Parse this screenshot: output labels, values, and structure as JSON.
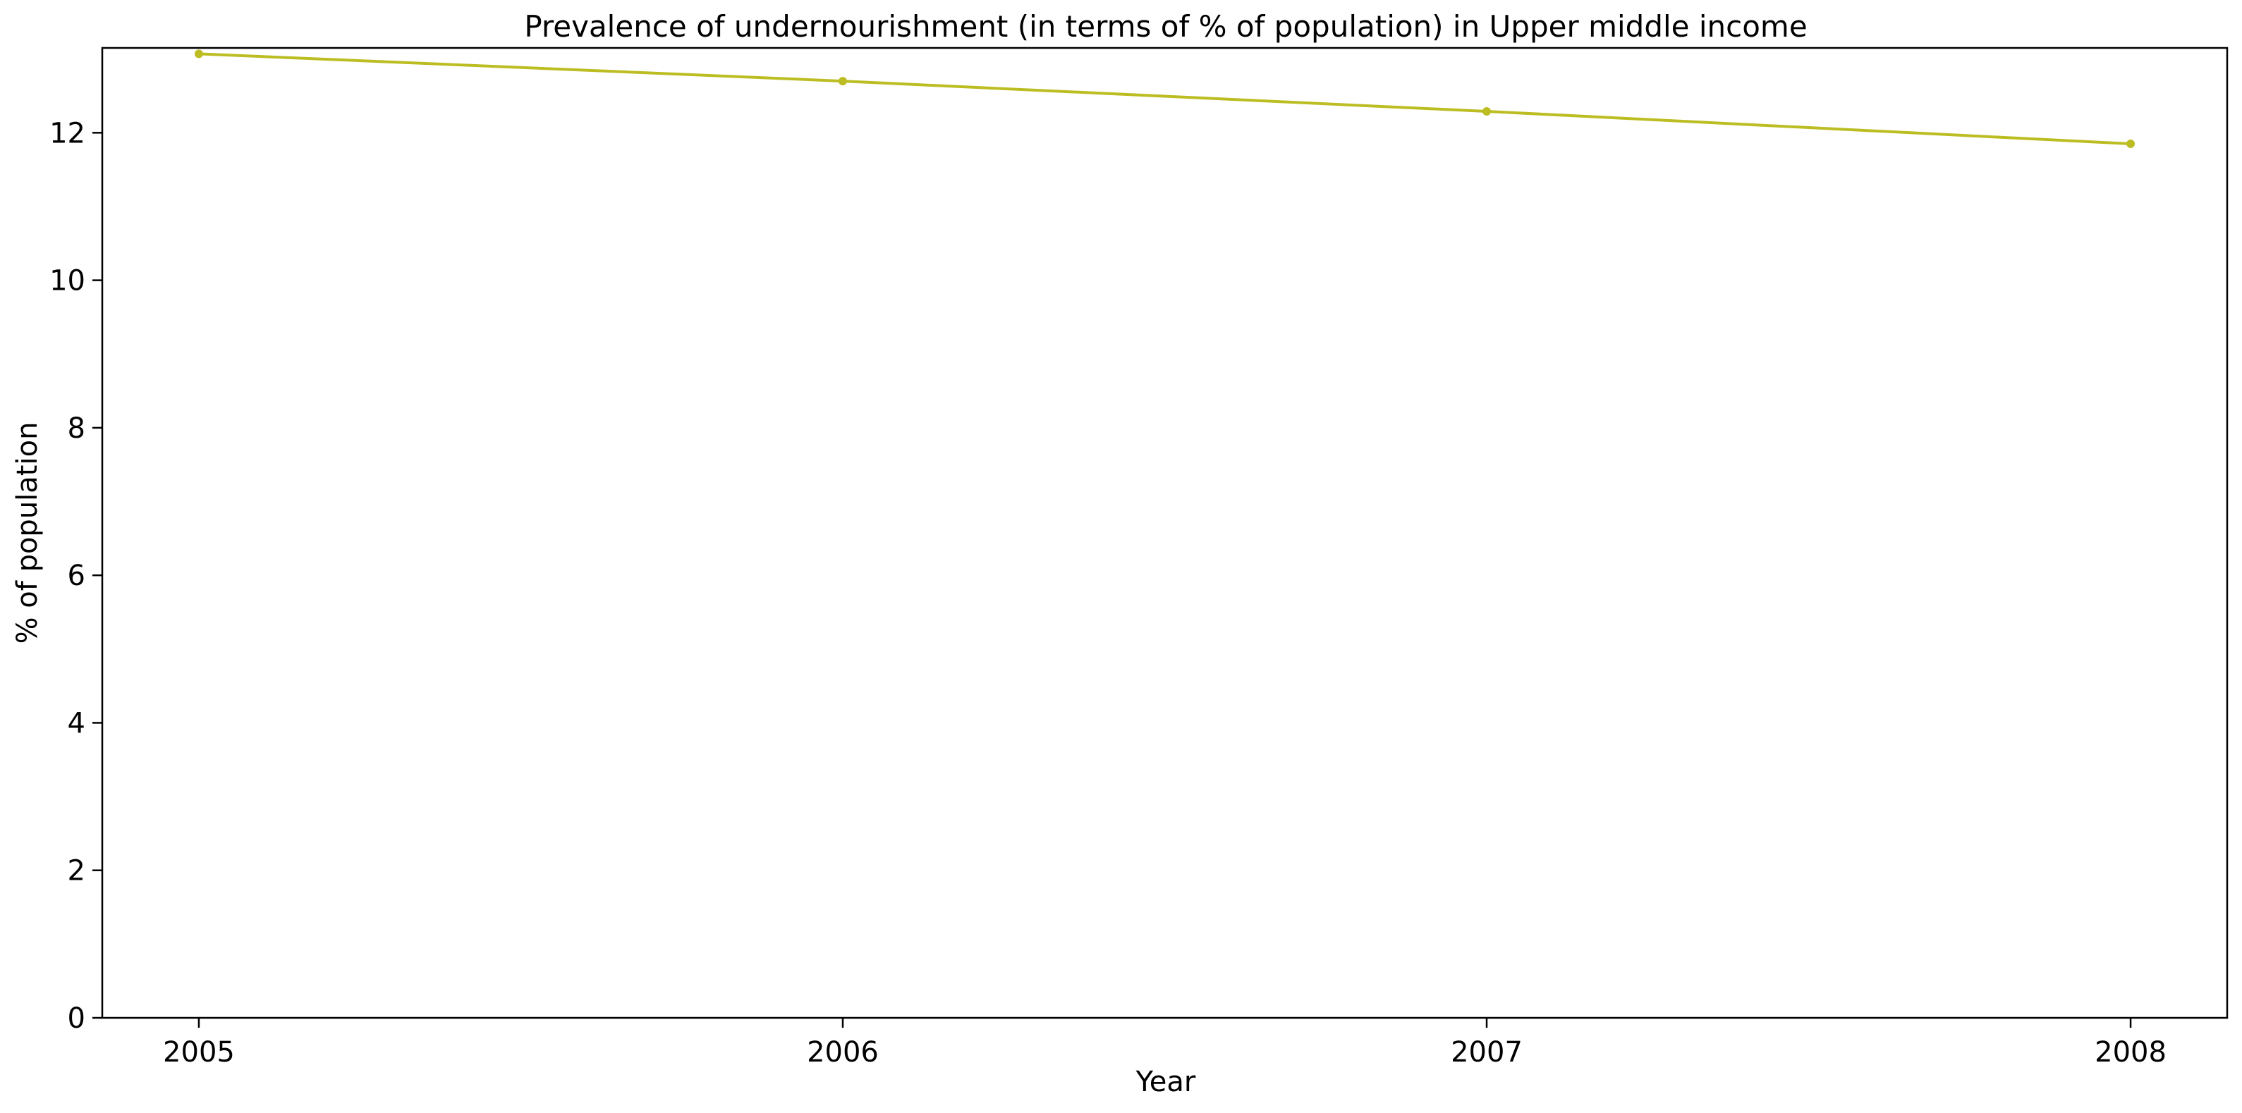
{
  "chart_data": {
    "type": "line",
    "title": "Prevalence of undernourishment (in terms of % of population) in Upper middle income",
    "xlabel": "Year",
    "ylabel": "% of population",
    "x": [
      "2005",
      "2006",
      "2007",
      "2008"
    ],
    "series": [
      {
        "values": [
          13.07,
          12.7,
          12.29,
          11.85
        ],
        "color": "#bcbd22"
      }
    ],
    "ylim": [
      0,
      13.15
    ],
    "yticks": [
      0,
      2,
      4,
      6,
      8,
      10,
      12
    ],
    "xlim": [
      2004.85,
      2008.15
    ],
    "grid": false,
    "legend": "none"
  }
}
